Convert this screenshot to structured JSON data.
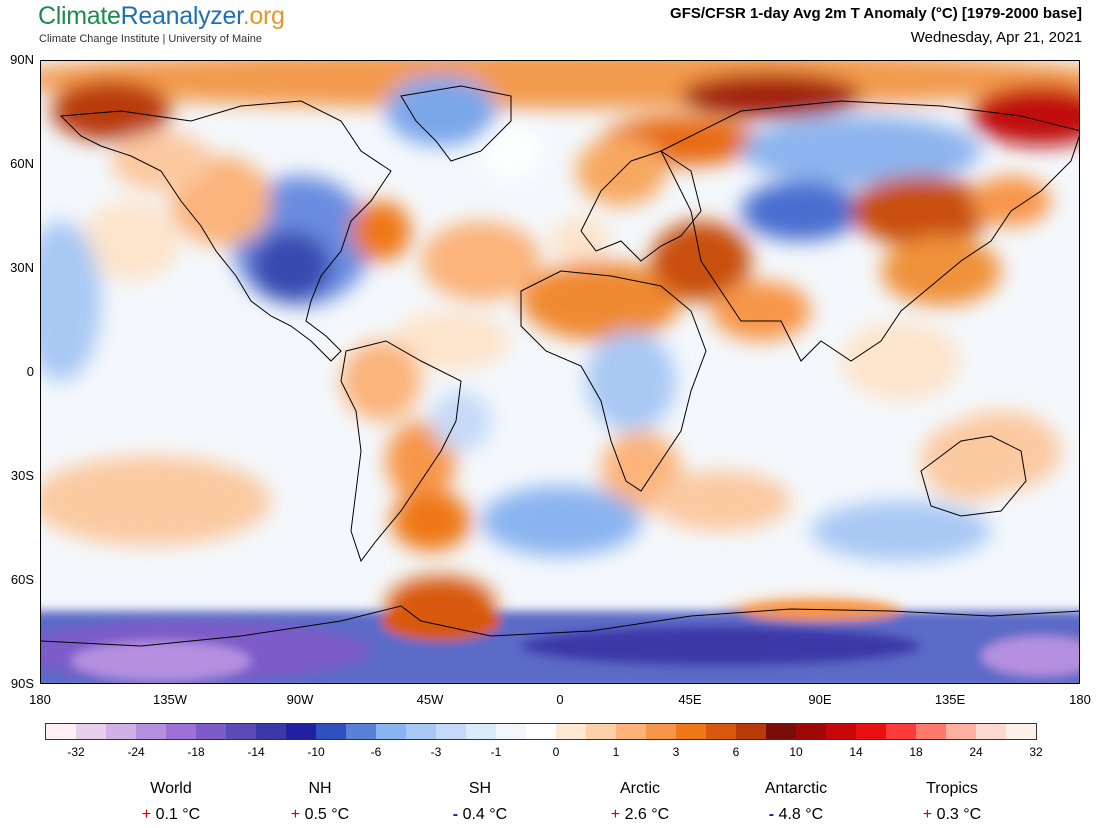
{
  "header": {
    "logo_part1": "Climate",
    "logo_part2": "Reanalyzer",
    "logo_part3": ".org",
    "subtitle": "Climate Change Institute | University of Maine",
    "title": "GFS/CFSR 1-day Avg 2m T Anomaly (°C) [1979-2000 base]",
    "date": "Wednesday, Apr 21, 2021"
  },
  "map": {
    "lat_labels": [
      "90N",
      "60N",
      "30N",
      "0",
      "30S",
      "60S",
      "90S"
    ],
    "lon_labels": [
      "180",
      "135W",
      "90W",
      "45W",
      "0",
      "45E",
      "90E",
      "135E",
      "180"
    ]
  },
  "legend": {
    "colors": [
      "#fff0f5",
      "#e8d0ec",
      "#d2b0e6",
      "#b690e0",
      "#a070d8",
      "#7c5cc8",
      "#5c4ab8",
      "#3c38a8",
      "#2020a0",
      "#3050c0",
      "#5a80d8",
      "#8ab4f0",
      "#a8c8f4",
      "#c4daf8",
      "#dcebfb",
      "#f2f7fd",
      "#ffffff",
      "#ffe8d4",
      "#fdd0a8",
      "#fbb37a",
      "#f7964a",
      "#ef7818",
      "#d85810",
      "#b83a08",
      "#7a0c0c",
      "#a00808",
      "#c80808",
      "#e81010",
      "#ff3a3a",
      "#ff7a6a",
      "#ffb0a0",
      "#ffd8d0",
      "#fff0ea"
    ],
    "ticks": [
      "-32",
      "-24",
      "-18",
      "-14",
      "-10",
      "-6",
      "-3",
      "-1",
      "0",
      "1",
      "3",
      "6",
      "10",
      "14",
      "18",
      "24",
      "32"
    ]
  },
  "stats": [
    {
      "name": "World",
      "sign": "+",
      "value": "0.1 °C"
    },
    {
      "name": "NH",
      "sign": "+",
      "value": "0.5 °C"
    },
    {
      "name": "SH",
      "sign": "-",
      "value": "0.4 °C"
    },
    {
      "name": "Arctic",
      "sign": "+",
      "value": "2.6 °C"
    },
    {
      "name": "Antarctic",
      "sign": "-",
      "value": "4.8 °C"
    },
    {
      "name": "Tropics",
      "sign": "+",
      "value": "0.3 °C"
    }
  ]
}
